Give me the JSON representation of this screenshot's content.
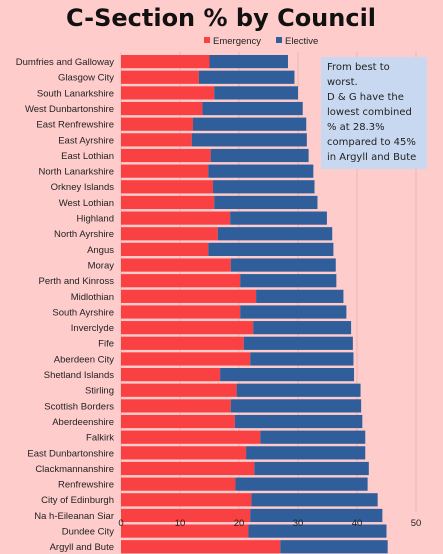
{
  "chart_data": {
    "type": "bar",
    "orientation": "horizontal",
    "stacked": true,
    "title": "C-Section % by Council",
    "categories": [
      "Dumfries and Galloway",
      "Glasgow City",
      "South Lanarkshire",
      "West Dunbartonshire",
      "East Renfrewshire",
      "East Ayrshire",
      "East Lothian",
      "North Lanarkshire",
      "Orkney Islands",
      "West Lothian",
      "Highland",
      "North Ayrshire",
      "Angus",
      "Moray",
      "Perth and Kinross",
      "Midlothian",
      "South Ayrshire",
      "Inverclyde",
      "Fife",
      "Aberdeen City",
      "Shetland Islands",
      "Stirling",
      "Scottish Borders",
      "Aberdeenshire",
      "Falkirk",
      "East Dunbartonshire",
      "Clackmannanshire",
      "Renfrewshire",
      "City of Edinburgh",
      "Na h-Eileanan Siar",
      "Dundee City",
      "Argyll and Bute"
    ],
    "series": [
      {
        "name": "Emergency",
        "color": "#f94144",
        "values": [
          15.0,
          13.2,
          15.8,
          13.8,
          12.2,
          12.0,
          15.2,
          14.8,
          15.6,
          15.8,
          18.5,
          16.4,
          14.8,
          18.6,
          20.2,
          22.9,
          20.2,
          22.4,
          20.8,
          21.9,
          16.8,
          19.6,
          18.6,
          19.3,
          23.6,
          21.2,
          22.6,
          19.4,
          22.1,
          21.9,
          21.6,
          27.0
        ],
        "legend_label": "Emergency"
      },
      {
        "name": "Elective",
        "color": "#2f5e9b",
        "values": [
          13.3,
          16.2,
          14.2,
          17.0,
          19.2,
          19.5,
          16.6,
          17.8,
          17.2,
          17.5,
          16.4,
          19.4,
          21.2,
          17.8,
          16.3,
          14.8,
          18.0,
          16.6,
          18.5,
          17.5,
          22.7,
          21.0,
          22.1,
          21.6,
          17.8,
          20.2,
          19.4,
          22.4,
          21.4,
          22.4,
          23.4,
          18.2
        ],
        "legend_label": "Elective"
      }
    ],
    "xlim": [
      0,
      50
    ],
    "xticks": [
      "0",
      "10",
      "20",
      "30",
      "40",
      "50"
    ],
    "grid": "vertical",
    "legend": "top",
    "annotation": {
      "lines": [
        "From best to",
        "worst.",
        "D & G have the",
        "lowest combined",
        "% at 28.3%",
        "compared to 45%",
        "in Argyll and Bute"
      ]
    }
  }
}
